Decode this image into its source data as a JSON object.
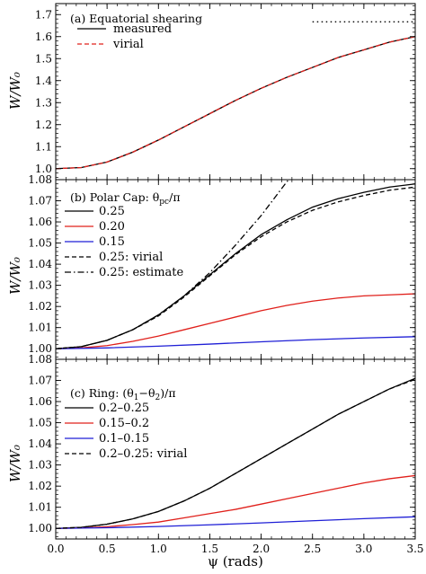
{
  "chart_data": [
    {
      "type": "line",
      "title": "(a) Equatorial shearing",
      "xlabel": "",
      "ylabel": "W/W₀",
      "xlim": [
        0.0,
        3.5
      ],
      "ylim": [
        0.95,
        1.75
      ],
      "yticks": [
        1.0,
        1.1,
        1.2,
        1.3,
        1.4,
        1.5,
        1.6,
        1.7
      ],
      "ytick_labels": [
        "1.0",
        "1.1",
        "1.2",
        "1.3",
        "1.4",
        "1.5",
        "1.6",
        "1.7"
      ],
      "xticks": [
        0.0,
        0.5,
        1.0,
        1.5,
        2.0,
        2.5,
        3.0,
        3.5
      ],
      "xtick_labels": [],
      "grid": false,
      "legend": "top-left",
      "series": [
        {
          "name": "measured",
          "color": "#000000",
          "dash": "solid",
          "x": [
            0.0,
            0.25,
            0.5,
            0.75,
            1.0,
            1.25,
            1.5,
            1.75,
            2.0,
            2.25,
            2.5,
            2.75,
            3.0,
            3.25,
            3.5
          ],
          "y": [
            1.0,
            1.005,
            1.03,
            1.075,
            1.13,
            1.19,
            1.25,
            1.31,
            1.365,
            1.415,
            1.46,
            1.505,
            1.54,
            1.575,
            1.6
          ]
        },
        {
          "name": "virial",
          "color": "#e0201b",
          "dash": "dashed",
          "x": [
            0.0,
            0.25,
            0.5,
            0.75,
            1.0,
            1.25,
            1.5,
            1.75,
            2.0,
            2.25,
            2.5,
            2.75,
            3.0,
            3.25,
            3.5
          ],
          "y": [
            1.0,
            1.005,
            1.03,
            1.075,
            1.13,
            1.19,
            1.25,
            1.31,
            1.365,
            1.415,
            1.46,
            1.505,
            1.54,
            1.575,
            1.6
          ]
        },
        {
          "name": "",
          "color": "#000000",
          "dash": "dotted",
          "x": [
            2.5,
            3.5
          ],
          "y": [
            1.667,
            1.667
          ]
        }
      ]
    },
    {
      "type": "line",
      "title": "(b) Polar Cap: θ",
      "title_sub": "pc",
      "title_tail": "/π",
      "xlabel": "",
      "ylabel": "W/W₀",
      "xlim": [
        0.0,
        3.5
      ],
      "ylim": [
        0.995,
        1.08
      ],
      "yticks": [
        1.0,
        1.01,
        1.02,
        1.03,
        1.04,
        1.05,
        1.06,
        1.07,
        1.08
      ],
      "ytick_labels": [
        "1.00",
        "1.01",
        "1.02",
        "1.03",
        "1.04",
        "1.05",
        "1.06",
        "1.07",
        "1.08"
      ],
      "xticks": [
        0.0,
        0.5,
        1.0,
        1.5,
        2.0,
        2.5,
        3.0,
        3.5
      ],
      "xtick_labels": [],
      "grid": false,
      "legend": "top-left",
      "series": [
        {
          "name": "0.25",
          "color": "#000000",
          "dash": "solid",
          "x": [
            0.0,
            0.25,
            0.5,
            0.75,
            1.0,
            1.25,
            1.5,
            1.75,
            2.0,
            2.25,
            2.5,
            2.75,
            3.0,
            3.25,
            3.5
          ],
          "y": [
            1.0,
            1.001,
            1.004,
            1.009,
            1.016,
            1.025,
            1.035,
            1.045,
            1.054,
            1.061,
            1.067,
            1.071,
            1.074,
            1.0765,
            1.078
          ]
        },
        {
          "name": "0.20",
          "color": "#e0201b",
          "dash": "solid",
          "x": [
            0.0,
            0.25,
            0.5,
            0.75,
            1.0,
            1.25,
            1.5,
            1.75,
            2.0,
            2.25,
            2.5,
            2.75,
            3.0,
            3.25,
            3.5
          ],
          "y": [
            1.0,
            1.0004,
            1.0015,
            1.0035,
            1.006,
            1.009,
            1.012,
            1.015,
            1.018,
            1.0205,
            1.0225,
            1.024,
            1.025,
            1.0255,
            1.026
          ]
        },
        {
          "name": "0.15",
          "color": "#1f1fd6",
          "dash": "solid",
          "x": [
            0.0,
            0.5,
            1.0,
            1.5,
            2.0,
            2.5,
            3.0,
            3.5
          ],
          "y": [
            1.0,
            1.0004,
            1.0012,
            1.0022,
            1.0033,
            1.0043,
            1.0051,
            1.0057
          ]
        },
        {
          "name": "0.25: virial",
          "color": "#000000",
          "dash": "dashed",
          "x": [
            0.0,
            0.25,
            0.5,
            0.75,
            1.0,
            1.25,
            1.5,
            1.75,
            2.0,
            2.25,
            2.5,
            2.75,
            3.0,
            3.25,
            3.5
          ],
          "y": [
            1.0,
            1.001,
            1.004,
            1.009,
            1.0155,
            1.0245,
            1.0345,
            1.0445,
            1.053,
            1.06,
            1.0655,
            1.0695,
            1.0725,
            1.075,
            1.0765
          ]
        },
        {
          "name": "0.25: estimate",
          "color": "#000000",
          "dash": "dashdot",
          "x": [
            0.0,
            0.25,
            0.5,
            0.75,
            1.0,
            1.25,
            1.5,
            1.75,
            2.0,
            2.25,
            2.27
          ],
          "y": [
            1.0,
            1.001,
            1.004,
            1.009,
            1.016,
            1.025,
            1.036,
            1.049,
            1.063,
            1.079,
            1.08
          ]
        }
      ]
    },
    {
      "type": "line",
      "title": "(c) Ring: (θ",
      "title_sub1": "1",
      "title_mid": "−θ",
      "title_sub2": "2",
      "title_tail": ")/π",
      "xlabel": "ψ (rads)",
      "ylabel": "W/W₀",
      "xlim": [
        0.0,
        3.5
      ],
      "ylim": [
        0.995,
        1.08
      ],
      "yticks": [
        1.0,
        1.01,
        1.02,
        1.03,
        1.04,
        1.05,
        1.06,
        1.07,
        1.08
      ],
      "ytick_labels": [
        "1.00",
        "1.01",
        "1.02",
        "1.03",
        "1.04",
        "1.05",
        "1.06",
        "1.07",
        "1.08"
      ],
      "xticks": [
        0.0,
        0.5,
        1.0,
        1.5,
        2.0,
        2.5,
        3.0,
        3.5
      ],
      "xtick_labels": [
        "0.0",
        "0.5",
        "1.0",
        "1.5",
        "2.0",
        "2.5",
        "3.0",
        "3.5"
      ],
      "grid": false,
      "legend": "top-left",
      "series": [
        {
          "name": "0.2–0.25",
          "color": "#000000",
          "dash": "solid",
          "x": [
            0.0,
            0.25,
            0.5,
            0.75,
            1.0,
            1.25,
            1.5,
            1.75,
            2.0,
            2.25,
            2.5,
            2.75,
            3.0,
            3.25,
            3.5
          ],
          "y": [
            1.0,
            1.0005,
            1.002,
            1.0045,
            1.008,
            1.013,
            1.019,
            1.026,
            1.033,
            1.04,
            1.047,
            1.054,
            1.06,
            1.066,
            1.071
          ]
        },
        {
          "name": "0.15–0.2",
          "color": "#e0201b",
          "dash": "solid",
          "x": [
            0.0,
            0.25,
            0.5,
            0.75,
            1.0,
            1.25,
            1.5,
            1.75,
            2.0,
            2.25,
            2.5,
            2.75,
            3.0,
            3.25,
            3.5
          ],
          "y": [
            1.0,
            1.0002,
            1.0008,
            1.0018,
            1.003,
            1.005,
            1.007,
            1.009,
            1.0115,
            1.014,
            1.0165,
            1.019,
            1.0215,
            1.0235,
            1.025
          ]
        },
        {
          "name": "0.1–0.15",
          "color": "#1f1fd6",
          "dash": "solid",
          "x": [
            0.0,
            0.5,
            1.0,
            1.5,
            2.0,
            2.5,
            3.0,
            3.5
          ],
          "y": [
            1.0,
            1.0003,
            1.0009,
            1.0017,
            1.0026,
            1.0036,
            1.0046,
            1.0055
          ]
        },
        {
          "name": "0.2–0.25: virial",
          "color": "#000000",
          "dash": "dashed",
          "x": [
            0.0,
            0.25,
            0.5,
            0.75,
            1.0,
            1.25,
            1.5,
            1.75,
            2.0,
            2.25,
            2.5,
            2.75,
            3.0,
            3.25,
            3.5
          ],
          "y": [
            1.0,
            1.0005,
            1.002,
            1.0045,
            1.008,
            1.013,
            1.019,
            1.026,
            1.033,
            1.04,
            1.047,
            1.054,
            1.06,
            1.066,
            1.0705
          ]
        }
      ]
    }
  ]
}
